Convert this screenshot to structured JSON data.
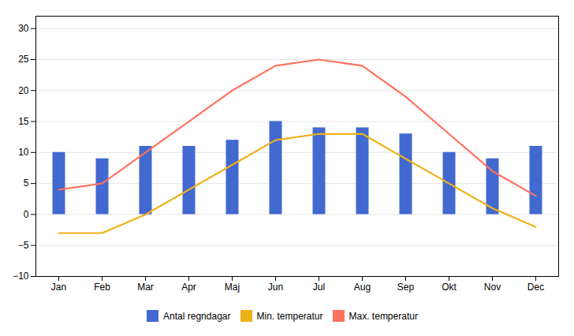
{
  "chart_data": {
    "type": "bar",
    "categories": [
      "Jan",
      "Feb",
      "Mar",
      "Apr",
      "Maj",
      "Jun",
      "Jul",
      "Aug",
      "Sep",
      "Okt",
      "Nov",
      "Dec"
    ],
    "series": [
      {
        "name": "Antal regndagar",
        "type": "bar",
        "values": [
          10,
          9,
          11,
          11,
          12,
          15,
          14,
          14,
          13,
          10,
          9,
          11
        ]
      },
      {
        "name": "Min. temperatur",
        "type": "line",
        "values": [
          -3,
          -3,
          0,
          4,
          8,
          12,
          13,
          13,
          9,
          5,
          1,
          -2
        ]
      },
      {
        "name": "Max. temperatur",
        "type": "line",
        "values": [
          4,
          5,
          10,
          15,
          20,
          24,
          25,
          24,
          19,
          13,
          7,
          3
        ]
      }
    ],
    "ylim": [
      -10,
      32
    ],
    "yticks": [
      -10,
      -5,
      0,
      5,
      10,
      15,
      20,
      25,
      30
    ],
    "grid": true,
    "legend": "bottom"
  }
}
